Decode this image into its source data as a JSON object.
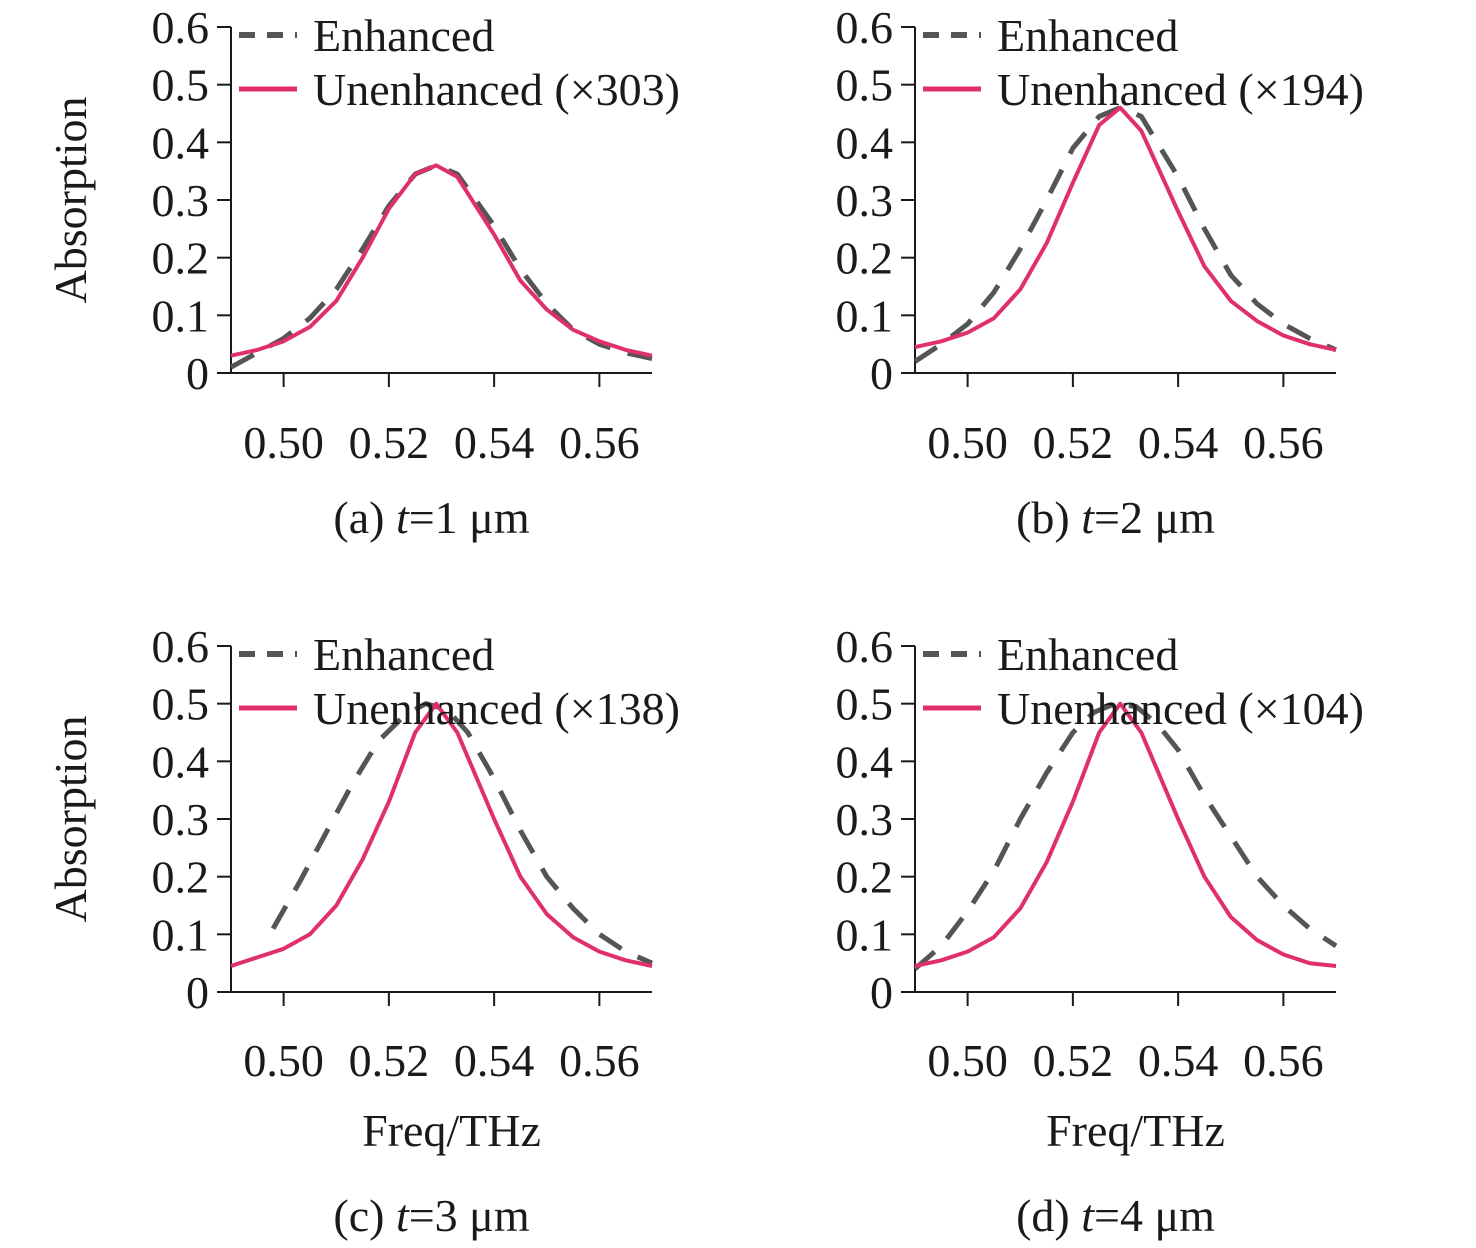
{
  "figure": {
    "colors": {
      "enhanced": "#555555",
      "unenhanced": "#e0306a",
      "axis": "#1a1a1a",
      "background": "#ffffff"
    }
  },
  "chart_data": [
    {
      "type": "line",
      "caption_prefix": "(a) ",
      "caption_var": "t",
      "caption_suffix": "=1 μm",
      "xlabel": "",
      "ylabel": "Absorption",
      "xlim": [
        0.49,
        0.57
      ],
      "ylim": [
        0,
        0.6
      ],
      "xticks": [
        "0.50",
        "0.52",
        "0.54",
        "0.56"
      ],
      "yticks": [
        "0",
        "0.1",
        "0.2",
        "0.3",
        "0.4",
        "0.5",
        "0.6"
      ],
      "legend_position": "top-left",
      "series": [
        {
          "name": "Enhanced",
          "style": "dashed",
          "x": [
            0.49,
            0.495,
            0.5,
            0.505,
            0.51,
            0.515,
            0.52,
            0.525,
            0.529,
            0.533,
            0.54,
            0.545,
            0.55,
            0.555,
            0.56,
            0.565,
            0.57
          ],
          "y": [
            0.01,
            0.035,
            0.06,
            0.095,
            0.145,
            0.215,
            0.29,
            0.345,
            0.36,
            0.345,
            0.255,
            0.18,
            0.12,
            0.075,
            0.05,
            0.035,
            0.025
          ]
        },
        {
          "name": "Unenhanced (×303)",
          "style": "solid",
          "x": [
            0.49,
            0.495,
            0.5,
            0.505,
            0.51,
            0.515,
            0.52,
            0.525,
            0.529,
            0.533,
            0.54,
            0.545,
            0.55,
            0.555,
            0.56,
            0.565,
            0.57
          ],
          "y": [
            0.03,
            0.04,
            0.055,
            0.08,
            0.125,
            0.2,
            0.285,
            0.345,
            0.36,
            0.34,
            0.24,
            0.16,
            0.11,
            0.075,
            0.055,
            0.04,
            0.03
          ]
        }
      ]
    },
    {
      "type": "line",
      "caption_prefix": "(b) ",
      "caption_var": "t",
      "caption_suffix": "=2 μm",
      "xlabel": "",
      "ylabel": "",
      "xlim": [
        0.49,
        0.57
      ],
      "ylim": [
        0,
        0.6
      ],
      "xticks": [
        "0.50",
        "0.52",
        "0.54",
        "0.56"
      ],
      "yticks": [
        "0",
        "0.1",
        "0.2",
        "0.3",
        "0.4",
        "0.5",
        "0.6"
      ],
      "legend_position": "top-left",
      "series": [
        {
          "name": "Enhanced",
          "style": "dashed",
          "x": [
            0.49,
            0.495,
            0.5,
            0.505,
            0.51,
            0.515,
            0.52,
            0.525,
            0.529,
            0.533,
            0.54,
            0.545,
            0.55,
            0.555,
            0.56,
            0.565,
            0.57
          ],
          "y": [
            0.02,
            0.05,
            0.085,
            0.14,
            0.215,
            0.3,
            0.39,
            0.445,
            0.46,
            0.445,
            0.34,
            0.25,
            0.17,
            0.12,
            0.085,
            0.06,
            0.04
          ]
        },
        {
          "name": "Unenhanced (×194)",
          "style": "solid",
          "x": [
            0.49,
            0.495,
            0.5,
            0.505,
            0.51,
            0.515,
            0.52,
            0.525,
            0.529,
            0.533,
            0.54,
            0.545,
            0.55,
            0.555,
            0.56,
            0.565,
            0.57
          ],
          "y": [
            0.045,
            0.055,
            0.07,
            0.095,
            0.145,
            0.225,
            0.33,
            0.43,
            0.46,
            0.42,
            0.28,
            0.185,
            0.125,
            0.09,
            0.065,
            0.05,
            0.04
          ]
        }
      ]
    },
    {
      "type": "line",
      "caption_prefix": "(c) ",
      "caption_var": "t",
      "caption_suffix": "=3 μm",
      "xlabel": "Freq/THz",
      "ylabel": "Absorption",
      "xlim": [
        0.49,
        0.57
      ],
      "ylim": [
        0,
        0.6
      ],
      "xticks": [
        "0.50",
        "0.52",
        "0.54",
        "0.56"
      ],
      "yticks": [
        "0",
        "0.1",
        "0.2",
        "0.3",
        "0.4",
        "0.5",
        "0.6"
      ],
      "legend_position": "top-left",
      "series": [
        {
          "name": "Enhanced",
          "style": "dashed",
          "x": [
            0.498,
            0.503,
            0.508,
            0.513,
            0.518,
            0.523,
            0.527,
            0.531,
            0.535,
            0.54,
            0.545,
            0.55,
            0.555,
            0.56,
            0.565,
            0.57
          ],
          "y": [
            0.11,
            0.19,
            0.275,
            0.36,
            0.435,
            0.48,
            0.5,
            0.49,
            0.45,
            0.37,
            0.28,
            0.2,
            0.145,
            0.1,
            0.07,
            0.05
          ]
        },
        {
          "name": "Unenhanced (×138)",
          "style": "solid",
          "x": [
            0.49,
            0.495,
            0.5,
            0.505,
            0.51,
            0.515,
            0.52,
            0.525,
            0.529,
            0.533,
            0.54,
            0.545,
            0.55,
            0.555,
            0.56,
            0.565,
            0.57
          ],
          "y": [
            0.045,
            0.06,
            0.075,
            0.1,
            0.15,
            0.23,
            0.33,
            0.45,
            0.5,
            0.45,
            0.3,
            0.2,
            0.135,
            0.095,
            0.07,
            0.055,
            0.045
          ]
        }
      ]
    },
    {
      "type": "line",
      "caption_prefix": "(d) ",
      "caption_var": "t",
      "caption_suffix": "=4 μm",
      "xlabel": "Freq/THz",
      "ylabel": "",
      "xlim": [
        0.49,
        0.57
      ],
      "ylim": [
        0,
        0.6
      ],
      "xticks": [
        "0.50",
        "0.52",
        "0.54",
        "0.56"
      ],
      "yticks": [
        "0",
        "0.1",
        "0.2",
        "0.3",
        "0.4",
        "0.5",
        "0.6"
      ],
      "legend_position": "top-left",
      "series": [
        {
          "name": "Enhanced",
          "style": "dashed",
          "x": [
            0.49,
            0.495,
            0.5,
            0.505,
            0.51,
            0.515,
            0.52,
            0.524,
            0.528,
            0.532,
            0.536,
            0.54,
            0.545,
            0.55,
            0.555,
            0.56,
            0.565,
            0.57
          ],
          "y": [
            0.04,
            0.08,
            0.14,
            0.21,
            0.3,
            0.38,
            0.45,
            0.485,
            0.5,
            0.495,
            0.465,
            0.42,
            0.34,
            0.27,
            0.2,
            0.15,
            0.11,
            0.08
          ]
        },
        {
          "name": "Unenhanced (×104)",
          "style": "solid",
          "x": [
            0.49,
            0.495,
            0.5,
            0.505,
            0.51,
            0.515,
            0.52,
            0.525,
            0.529,
            0.533,
            0.54,
            0.545,
            0.55,
            0.555,
            0.56,
            0.565,
            0.57
          ],
          "y": [
            0.045,
            0.055,
            0.07,
            0.095,
            0.145,
            0.225,
            0.33,
            0.45,
            0.5,
            0.45,
            0.3,
            0.2,
            0.13,
            0.09,
            0.065,
            0.05,
            0.045
          ]
        }
      ]
    }
  ]
}
